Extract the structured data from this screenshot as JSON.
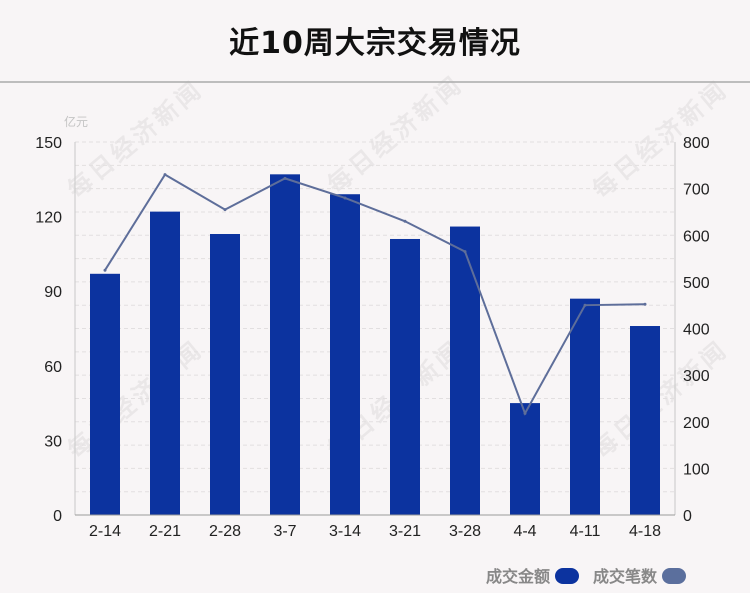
{
  "page": {
    "title": "近10周大宗交易情况",
    "watermark": "每日经济新闻"
  },
  "legend": {
    "amount_label": "成交金额",
    "count_label": "成交笔数"
  },
  "colors": {
    "bar": "#0c339f",
    "line": "#5e6e9a",
    "amount_swatch": "#0c339f",
    "count_swatch": "#5b6f9d"
  },
  "chart_data": {
    "type": "bar",
    "categories": [
      "2-14",
      "2-21",
      "2-28",
      "3-7",
      "3-14",
      "3-21",
      "3-28",
      "4-4",
      "4-11",
      "4-18"
    ],
    "series": [
      {
        "name": "成交金额",
        "type": "bar",
        "axis": "left",
        "values": [
          97,
          122,
          113,
          137,
          129,
          111,
          116,
          45,
          87,
          76
        ]
      },
      {
        "name": "成交笔数",
        "type": "line",
        "axis": "right",
        "values": [
          525,
          730,
          655,
          722,
          680,
          630,
          565,
          218,
          450,
          452
        ]
      }
    ],
    "ylabel": "亿元",
    "ylim": [
      0,
      150
    ],
    "yticks": [
      0,
      30,
      60,
      90,
      120,
      150
    ],
    "y2lim": [
      0,
      800
    ],
    "y2ticks": [
      0,
      100,
      200,
      300,
      400,
      500,
      600,
      700,
      800
    ],
    "grid": true,
    "legend_position": "bottom-right"
  }
}
